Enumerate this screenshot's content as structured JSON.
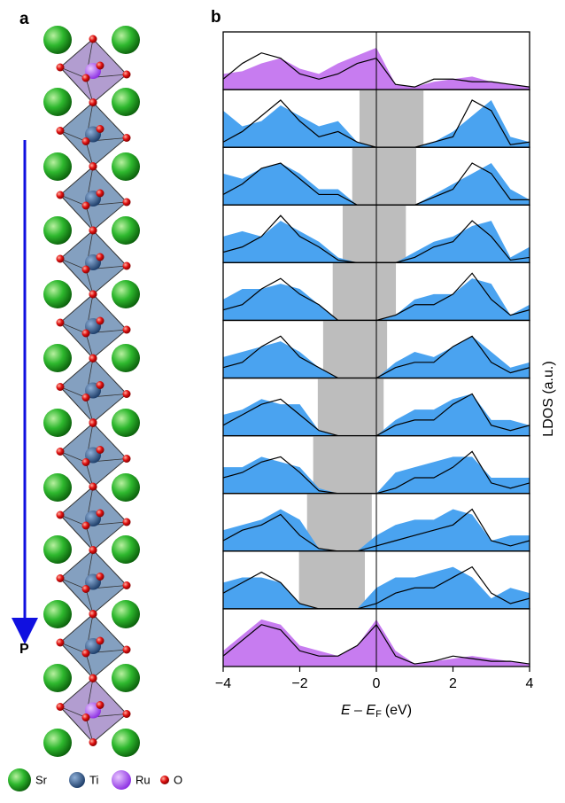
{
  "panel_a": {
    "label": "a",
    "arrow_label": "P",
    "legend": [
      "Sr",
      "Ti",
      "Ru",
      "O"
    ]
  },
  "chart_data": {
    "type": "ldos",
    "panel_label": "b",
    "xlabel": "E – E",
    "xlabel_sub": "F",
    "xlabel_unit": "(eV)",
    "ylabel": "LDOS (a.u.)",
    "xlim": [
      -4,
      4
    ],
    "xticks": [
      {
        "value": -4,
        "label": "−4"
      },
      {
        "value": -2,
        "label": "−2"
      },
      0,
      2,
      4
    ],
    "refline": 0,
    "ylim": [
      0,
      1
    ],
    "gap_color": "#bdbdbd",
    "line_color": "#000000",
    "x": [
      -4,
      -3.5,
      -3,
      -2.5,
      -2,
      -1.5,
      -1,
      -0.5,
      0,
      0.5,
      1,
      1.5,
      2,
      2.5,
      3,
      3.5,
      4
    ],
    "panels": [
      {
        "color": "#c77cf0",
        "gap": null,
        "filled": [
          0.3,
          0.35,
          0.5,
          0.6,
          0.4,
          0.3,
          0.5,
          0.65,
          0.8,
          0.1,
          0.05,
          0.15,
          0.2,
          0.25,
          0.15,
          0.1,
          0.05
        ],
        "line": [
          0.2,
          0.5,
          0.7,
          0.6,
          0.3,
          0.2,
          0.3,
          0.5,
          0.6,
          0.1,
          0.05,
          0.2,
          0.2,
          0.15,
          0.15,
          0.1,
          0.05
        ]
      },
      {
        "color": "#4aa3f0",
        "gap": [
          -0.44,
          1.23
        ],
        "filled": [
          0.7,
          0.4,
          0.5,
          0.8,
          0.6,
          0.4,
          0.5,
          0.1,
          0,
          0,
          0,
          0.1,
          0.3,
          0.6,
          0.9,
          0.2,
          0.1
        ],
        "line": [
          0.1,
          0.3,
          0.6,
          0.9,
          0.5,
          0.2,
          0.3,
          0.1,
          0,
          0,
          0,
          0.1,
          0.2,
          0.9,
          0.7,
          0.05,
          0.1
        ]
      },
      {
        "color": "#4aa3f0",
        "gap": [
          -0.63,
          1.04
        ],
        "filled": [
          0.6,
          0.5,
          0.7,
          0.8,
          0.6,
          0.3,
          0.3,
          0,
          0,
          0,
          0,
          0.2,
          0.4,
          0.6,
          0.8,
          0.3,
          0.1
        ],
        "line": [
          0.2,
          0.4,
          0.7,
          0.8,
          0.5,
          0.2,
          0.2,
          0,
          0,
          0,
          0,
          0.15,
          0.3,
          0.8,
          0.6,
          0.1,
          0.1
        ]
      },
      {
        "color": "#4aa3f0",
        "gap": [
          -0.88,
          0.77
        ],
        "filled": [
          0.5,
          0.6,
          0.5,
          0.8,
          0.6,
          0.4,
          0.1,
          0,
          0,
          0,
          0.2,
          0.4,
          0.5,
          0.7,
          0.8,
          0.1,
          0.3
        ],
        "line": [
          0.2,
          0.3,
          0.5,
          0.9,
          0.5,
          0.3,
          0.05,
          0,
          0,
          0,
          0.1,
          0.3,
          0.4,
          0.8,
          0.5,
          0.05,
          0.1
        ]
      },
      {
        "color": "#4aa3f0",
        "gap": [
          -1.14,
          0.51
        ],
        "filled": [
          0.4,
          0.6,
          0.6,
          0.7,
          0.6,
          0.3,
          0,
          0,
          0,
          0.1,
          0.4,
          0.5,
          0.5,
          0.8,
          0.7,
          0.1,
          0.3
        ],
        "line": [
          0.2,
          0.3,
          0.6,
          0.8,
          0.5,
          0.3,
          0,
          0,
          0,
          0.1,
          0.3,
          0.3,
          0.5,
          0.9,
          0.4,
          0.1,
          0.2
        ]
      },
      {
        "color": "#4aa3f0",
        "gap": [
          -1.39,
          0.28
        ],
        "filled": [
          0.4,
          0.5,
          0.6,
          0.7,
          0.5,
          0.2,
          0,
          0,
          0,
          0.3,
          0.5,
          0.4,
          0.6,
          0.8,
          0.5,
          0.2,
          0.3
        ],
        "line": [
          0.2,
          0.3,
          0.6,
          0.8,
          0.4,
          0.2,
          0,
          0,
          0,
          0.2,
          0.3,
          0.3,
          0.6,
          0.8,
          0.3,
          0.1,
          0.2
        ]
      },
      {
        "color": "#4aa3f0",
        "gap": [
          -1.53,
          0.19
        ],
        "filled": [
          0.4,
          0.5,
          0.7,
          0.6,
          0.6,
          0.1,
          0,
          0,
          0,
          0.3,
          0.5,
          0.5,
          0.7,
          0.8,
          0.3,
          0.3,
          0.2
        ],
        "line": [
          0.2,
          0.4,
          0.6,
          0.7,
          0.4,
          0.1,
          0,
          0,
          0,
          0.2,
          0.3,
          0.3,
          0.6,
          0.8,
          0.2,
          0.1,
          0.2
        ]
      },
      {
        "color": "#4aa3f0",
        "gap": [
          -1.65,
          0
        ],
        "filled": [
          0.5,
          0.5,
          0.7,
          0.6,
          0.5,
          0.1,
          0,
          0,
          0,
          0.4,
          0.5,
          0.6,
          0.7,
          0.7,
          0.3,
          0.3,
          0.3
        ],
        "line": [
          0.3,
          0.4,
          0.6,
          0.7,
          0.4,
          0.05,
          0,
          0,
          0,
          0.1,
          0.3,
          0.3,
          0.5,
          0.8,
          0.2,
          0.1,
          0.2
        ]
      },
      {
        "color": "#4aa3f0",
        "gap": [
          -1.81,
          -0.12
        ],
        "filled": [
          0.4,
          0.5,
          0.6,
          0.8,
          0.6,
          0.05,
          0,
          0,
          0.3,
          0.5,
          0.6,
          0.6,
          0.8,
          0.7,
          0.2,
          0.3,
          0.3
        ],
        "line": [
          0.2,
          0.4,
          0.5,
          0.7,
          0.3,
          0.05,
          0,
          0,
          0.1,
          0.2,
          0.3,
          0.4,
          0.5,
          0.8,
          0.2,
          0.1,
          0.2
        ]
      },
      {
        "color": "#4aa3f0",
        "gap": [
          -2.02,
          -0.3
        ],
        "filled": [
          0.5,
          0.6,
          0.6,
          0.5,
          0.1,
          0,
          0,
          0,
          0.4,
          0.6,
          0.6,
          0.7,
          0.8,
          0.6,
          0.2,
          0.4,
          0.3
        ],
        "line": [
          0.3,
          0.5,
          0.7,
          0.5,
          0.1,
          0,
          0,
          0,
          0.1,
          0.3,
          0.4,
          0.4,
          0.6,
          0.8,
          0.3,
          0.1,
          0.2
        ]
      },
      {
        "color": "#c77cf0",
        "gap": null,
        "filled": [
          0.3,
          0.6,
          0.9,
          0.8,
          0.4,
          0.3,
          0.2,
          0.4,
          0.9,
          0.3,
          0.05,
          0.1,
          0.15,
          0.2,
          0.15,
          0.1,
          0.05
        ],
        "line": [
          0.2,
          0.5,
          0.8,
          0.7,
          0.3,
          0.2,
          0.2,
          0.4,
          0.8,
          0.2,
          0.05,
          0.1,
          0.2,
          0.15,
          0.1,
          0.1,
          0.05
        ]
      }
    ]
  }
}
